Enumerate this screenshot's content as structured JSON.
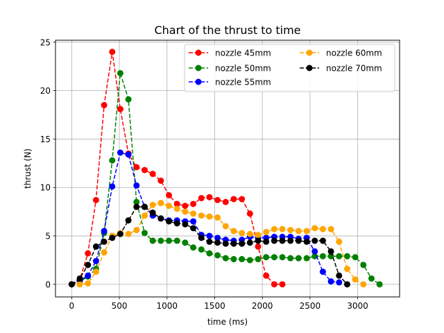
{
  "chart_data": {
    "type": "line",
    "title": "Chart of the thrust to time",
    "xlabel": "time (ms)",
    "ylabel": "thrust (N)",
    "xlim": [
      -170,
      3440
    ],
    "ylim": [
      -1.3,
      25.2
    ],
    "xticks": [
      0,
      500,
      1000,
      1500,
      2000,
      2500,
      3000
    ],
    "yticks": [
      0,
      5,
      10,
      15,
      20,
      25
    ],
    "grid": true,
    "legend_position": "top-right",
    "series": [
      {
        "name": "nozzle 45mm",
        "color": "#ff0000",
        "x": [
          0,
          85,
          170,
          255,
          340,
          425,
          510,
          595,
          680,
          765,
          850,
          935,
          1020,
          1105,
          1190,
          1275,
          1360,
          1445,
          1530,
          1615,
          1700,
          1785,
          1870,
          1955,
          2040,
          2125,
          2210
        ],
        "y": [
          0,
          0.5,
          3.2,
          8.7,
          18.5,
          24.0,
          18.1,
          13.5,
          12.1,
          11.8,
          11.4,
          10.7,
          9.2,
          8.3,
          8.1,
          8.3,
          8.9,
          9.0,
          8.7,
          8.5,
          8.8,
          8.8,
          7.3,
          3.9,
          0.9,
          0.0,
          0.0
        ]
      },
      {
        "name": "nozzle 50mm",
        "color": "#008000",
        "x": [
          0,
          85,
          170,
          255,
          340,
          425,
          510,
          595,
          680,
          765,
          850,
          935,
          1020,
          1105,
          1190,
          1275,
          1360,
          1445,
          1530,
          1615,
          1700,
          1785,
          1870,
          1955,
          2040,
          2125,
          2210,
          2295,
          2380,
          2465,
          2550,
          2635,
          2720,
          2805,
          2890,
          2975,
          3060,
          3145,
          3230
        ],
        "y": [
          0,
          0.3,
          0.8,
          1.6,
          5.3,
          12.8,
          21.8,
          19.1,
          8.5,
          5.3,
          4.5,
          4.5,
          4.5,
          4.5,
          4.3,
          3.8,
          3.6,
          3.2,
          3.0,
          2.7,
          2.6,
          2.6,
          2.5,
          2.6,
          2.8,
          2.8,
          2.8,
          2.7,
          2.7,
          2.7,
          2.9,
          2.9,
          2.9,
          2.9,
          2.9,
          2.8,
          2.0,
          0.6,
          0.0
        ]
      },
      {
        "name": "nozzle 55mm",
        "color": "#0000ff",
        "x": [
          0,
          85,
          170,
          255,
          340,
          425,
          510,
          595,
          680,
          765,
          850,
          935,
          1020,
          1105,
          1190,
          1275,
          1360,
          1445,
          1530,
          1615,
          1700,
          1785,
          1870,
          1955,
          2040,
          2125,
          2210,
          2295,
          2380,
          2465,
          2550,
          2635,
          2720,
          2805
        ],
        "y": [
          0,
          0.4,
          0.9,
          2.4,
          5.5,
          10.1,
          13.6,
          13.4,
          10.2,
          8.0,
          7.1,
          6.8,
          6.6,
          6.6,
          6.5,
          6.5,
          5.1,
          5.0,
          4.8,
          4.6,
          4.5,
          4.6,
          4.9,
          4.8,
          4.8,
          4.9,
          4.9,
          4.9,
          4.7,
          4.8,
          3.4,
          1.3,
          0.3,
          0.2
        ]
      },
      {
        "name": "nozzle 60mm",
        "color": "#ffa500",
        "x": [
          0,
          85,
          170,
          255,
          340,
          425,
          510,
          595,
          680,
          765,
          850,
          935,
          1020,
          1105,
          1190,
          1275,
          1360,
          1445,
          1530,
          1615,
          1700,
          1785,
          1870,
          1955,
          2040,
          2125,
          2210,
          2295,
          2380,
          2465,
          2550,
          2635,
          2720,
          2805,
          2890,
          2975,
          3060
        ],
        "y": [
          0,
          0,
          0.1,
          1.3,
          3.3,
          5.0,
          5.3,
          5.2,
          5.6,
          7.1,
          8.2,
          8.4,
          8.1,
          7.8,
          7.5,
          7.3,
          7.1,
          7.0,
          6.9,
          6.0,
          5.5,
          5.3,
          5.2,
          5.1,
          5.4,
          5.7,
          5.7,
          5.6,
          5.5,
          5.5,
          5.8,
          5.7,
          5.7,
          4.4,
          1.6,
          0.5,
          0.0
        ]
      },
      {
        "name": "nozzle 70mm",
        "color": "#000000",
        "x": [
          0,
          85,
          170,
          255,
          340,
          425,
          510,
          595,
          680,
          765,
          850,
          935,
          1020,
          1105,
          1190,
          1275,
          1360,
          1445,
          1530,
          1615,
          1700,
          1785,
          1870,
          1955,
          2040,
          2125,
          2210,
          2295,
          2380,
          2465,
          2550,
          2635,
          2720,
          2805,
          2890
        ],
        "y": [
          0,
          0.6,
          2.0,
          3.9,
          4.4,
          4.8,
          5.2,
          6.6,
          8.0,
          8.0,
          7.4,
          6.8,
          6.5,
          6.3,
          6.2,
          5.8,
          4.8,
          4.4,
          4.3,
          4.2,
          4.2,
          4.2,
          4.3,
          4.5,
          4.4,
          4.5,
          4.5,
          4.5,
          4.5,
          4.4,
          4.5,
          4.5,
          3.4,
          0.9,
          0.0
        ]
      }
    ]
  }
}
